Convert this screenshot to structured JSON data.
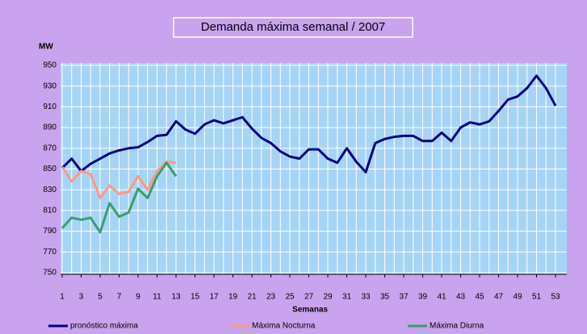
{
  "chart_data": {
    "type": "line",
    "title": "Demanda máxima semanal / 2007",
    "y_label": "MW",
    "x_label": "Semanas",
    "x": [
      1,
      2,
      3,
      4,
      5,
      6,
      7,
      8,
      9,
      10,
      11,
      12,
      13,
      14,
      15,
      16,
      17,
      18,
      19,
      20,
      21,
      22,
      23,
      24,
      25,
      26,
      27,
      28,
      29,
      30,
      31,
      32,
      33,
      34,
      35,
      36,
      37,
      38,
      39,
      40,
      41,
      42,
      43,
      44,
      45,
      46,
      47,
      48,
      49,
      50,
      51,
      52,
      53
    ],
    "series": [
      {
        "name": "pronóstico máxima",
        "color": "#000080",
        "values": [
          851,
          860,
          848,
          855,
          860,
          865,
          868,
          870,
          871,
          876,
          882,
          883,
          896,
          888,
          884,
          893,
          897,
          894,
          897,
          900,
          889,
          880,
          875,
          867,
          862,
          860,
          869,
          869,
          860,
          856,
          870,
          857,
          847,
          875,
          879,
          881,
          882,
          882,
          877,
          877,
          885,
          877,
          890,
          895,
          893,
          896,
          906,
          917,
          920,
          928,
          940,
          928,
          911
        ]
      },
      {
        "name": "Máxima Nocturna",
        "color": "#ff9980",
        "values": [
          852,
          838,
          848,
          845,
          822,
          834,
          826,
          828,
          843,
          830,
          848,
          857,
          856,
          null,
          null,
          null,
          null,
          null,
          null,
          null,
          null,
          null,
          null,
          null,
          null,
          null,
          null,
          null,
          null,
          null,
          null,
          null,
          null,
          null,
          null,
          null,
          null,
          null,
          null,
          null,
          null,
          null,
          null,
          null,
          null,
          null,
          null,
          null,
          null,
          null,
          null,
          null,
          null
        ]
      },
      {
        "name": "Máxima Diurna",
        "color": "#3c9e6a",
        "values": [
          793,
          803,
          801,
          803,
          789,
          817,
          804,
          808,
          831,
          822,
          843,
          856,
          843,
          null,
          null,
          null,
          null,
          null,
          null,
          null,
          null,
          null,
          null,
          null,
          null,
          null,
          null,
          null,
          null,
          null,
          null,
          null,
          null,
          null,
          null,
          null,
          null,
          null,
          null,
          null,
          null,
          null,
          null,
          null,
          null,
          null,
          null,
          null,
          null,
          null,
          null,
          null,
          null
        ]
      }
    ],
    "xlim": [
      1,
      53
    ],
    "xticks": [
      1,
      3,
      5,
      7,
      9,
      11,
      13,
      15,
      17,
      19,
      21,
      23,
      25,
      27,
      29,
      31,
      33,
      35,
      37,
      39,
      41,
      43,
      45,
      47,
      49,
      51,
      53
    ],
    "ylim": [
      750,
      950
    ],
    "yticks": [
      750,
      770,
      790,
      810,
      830,
      850,
      870,
      890,
      910,
      930,
      950
    ],
    "grid": true
  }
}
